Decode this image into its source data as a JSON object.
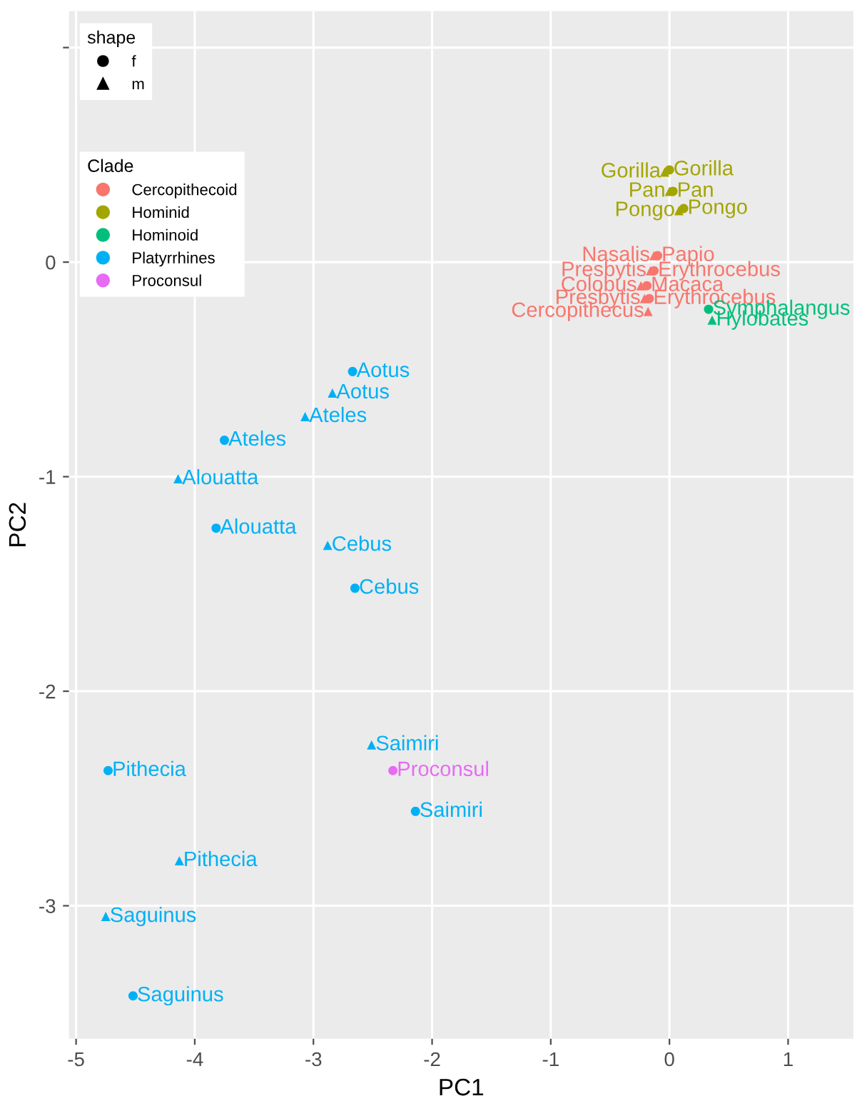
{
  "chart_data": {
    "type": "scatter",
    "xlabel": "PC1",
    "ylabel": "PC2",
    "legend_title": "Clade",
    "legend": "top left",
    "grid": true,
    "xlim": [
      -5.06,
      1.55
    ],
    "ylim": [
      -3.62,
      1.17
    ],
    "xticks": [
      -5,
      -4,
      -3,
      -2,
      -1,
      0,
      1
    ],
    "yticks": [
      {
        "value": 1,
        "label": null
      },
      0,
      -1,
      -2,
      -3
    ],
    "series": [
      {
        "name": "Cercopithecoid",
        "color": "#f8766d",
        "marker": "circle",
        "x": [
          -0.1,
          -0.13,
          -0.19,
          -0.17
        ],
        "values": [
          0.03,
          -0.04,
          -0.11,
          -0.17
        ]
      },
      {
        "color": "#f8766d",
        "marker": "triangle",
        "x": [
          -0.13,
          -0.16,
          -0.24,
          -0.21,
          -0.18
        ],
        "values": [
          0.03,
          -0.04,
          -0.11,
          -0.17,
          -0.23
        ]
      },
      {
        "name": "Hominid",
        "color": "#a3a500",
        "marker": "circle",
        "x": [
          0.0,
          0.03,
          0.12
        ],
        "values": [
          0.43,
          0.33,
          0.25
        ]
      },
      {
        "color": "#a3a500",
        "marker": "triangle",
        "x": [
          -0.04,
          0.0,
          0.08
        ],
        "values": [
          0.42,
          0.33,
          0.24
        ]
      },
      {
        "name": "Hominoid",
        "color": "#00bf7d",
        "marker": "circle",
        "x": [
          0.33
        ],
        "values": [
          -0.22
        ]
      },
      {
        "color": "#00bf7d",
        "marker": "triangle",
        "x": [
          0.36
        ],
        "values": [
          -0.27
        ]
      },
      {
        "name": "Platyrrhines",
        "color": "#00b0f6",
        "marker": "circle",
        "x": [
          -2.67,
          -3.75,
          -3.82,
          -2.65,
          -2.14,
          -4.73,
          -4.52
        ],
        "values": [
          -0.51,
          -0.83,
          -1.24,
          -1.52,
          -2.56,
          -2.37,
          -3.42
        ]
      },
      {
        "color": "#00b0f6",
        "marker": "triangle",
        "x": [
          -2.84,
          -3.07,
          -4.14,
          -2.88,
          -2.51,
          -4.13,
          -4.75
        ],
        "values": [
          -0.61,
          -0.72,
          -1.01,
          -1.32,
          -2.25,
          -2.79,
          -3.05
        ]
      },
      {
        "name": "Proconsul",
        "color": "#e76bf3",
        "marker": "circle",
        "x": [
          -2.33
        ],
        "values": [
          -2.37
        ]
      }
    ],
    "annotations": [
      "shape",
      "f",
      "m",
      {
        "text": "Papio",
        "x": -0.1,
        "y": 0.03
      },
      {
        "text": "Erythrocebus",
        "x": -0.13,
        "y": -0.04
      },
      {
        "text": "Macaca",
        "x": -0.19,
        "y": -0.11
      },
      {
        "text": "Erythrocebus",
        "x": -0.17,
        "y": -0.17
      },
      {
        "text": "Nasalis",
        "x": -0.13,
        "y": 0.03
      },
      {
        "text": "Presbytis",
        "x": -0.16,
        "y": -0.04
      },
      {
        "text": "Colobus",
        "x": -0.24,
        "y": -0.11
      },
      {
        "text": "Presbytis",
        "x": -0.21,
        "y": -0.17
      },
      {
        "text": "Cercopithecus",
        "x": -0.18,
        "y": -0.23
      },
      {
        "text": "Gorilla",
        "x": 0.0,
        "y": 0.43
      },
      {
        "text": "Pan",
        "x": 0.03,
        "y": 0.33
      },
      {
        "text": "Pongo",
        "x": 0.12,
        "y": 0.25
      },
      {
        "text": "Gorilla",
        "x": -0.04,
        "y": 0.42
      },
      {
        "text": "Pan",
        "x": 0.0,
        "y": 0.33
      },
      {
        "text": "Pongo",
        "x": 0.08,
        "y": 0.24
      },
      {
        "text": "Symphalangus",
        "x": 0.33,
        "y": -0.22
      },
      {
        "text": "Hylobates",
        "x": 0.36,
        "y": -0.27
      },
      {
        "text": "Aotus",
        "x": -2.67,
        "y": -0.51
      },
      {
        "text": "Ateles",
        "x": -3.75,
        "y": -0.83
      },
      {
        "text": "Alouatta",
        "x": -3.82,
        "y": -1.24
      },
      {
        "text": "Cebus",
        "x": -2.65,
        "y": -1.52
      },
      {
        "text": "Saimiri",
        "x": -2.14,
        "y": -2.56
      },
      {
        "text": "Pithecia",
        "x": -4.73,
        "y": -2.37
      },
      {
        "text": "Saguinus",
        "x": -4.52,
        "y": -3.42
      },
      {
        "text": "Aotus",
        "x": -2.84,
        "y": -0.61
      },
      {
        "text": "Ateles",
        "x": -3.07,
        "y": -0.72
      },
      {
        "text": "Alouatta",
        "x": -4.14,
        "y": -1.01
      },
      {
        "text": "Cebus",
        "x": -2.88,
        "y": -1.32
      },
      {
        "text": "Saimiri",
        "x": -2.51,
        "y": -2.25
      },
      {
        "text": "Pithecia",
        "x": -4.13,
        "y": -2.79
      },
      {
        "text": "Saguinus",
        "x": -4.75,
        "y": -3.05
      },
      {
        "text": "Proconsul",
        "x": -2.33,
        "y": -2.37
      }
    ]
  }
}
